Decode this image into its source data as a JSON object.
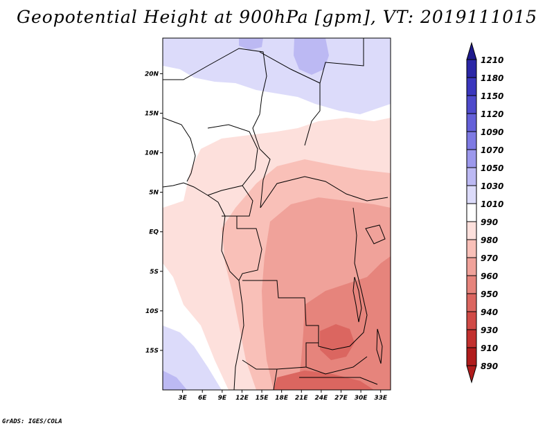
{
  "title": "Geopotential Height at 900hPa [gpm], VT: 2019111015",
  "credit": "GrADS: IGES/COLA",
  "map": {
    "region": "Central Africa",
    "lon_range": [
      0,
      34.5
    ],
    "lat_range": [
      -20,
      24.5
    ],
    "lon_labels": [
      "3E",
      "6E",
      "9E",
      "12E",
      "15E",
      "18E",
      "21E",
      "24E",
      "27E",
      "30E",
      "33E"
    ],
    "lon_values": [
      3,
      6,
      9,
      12,
      15,
      18,
      21,
      24,
      27,
      30,
      33
    ],
    "lat_labels": [
      "20N",
      "15N",
      "10N",
      "5N",
      "EQ",
      "5S",
      "10S",
      "15S"
    ],
    "lat_values": [
      20,
      15,
      10,
      5,
      0,
      -5,
      -10,
      -15
    ]
  },
  "colorbar": {
    "levels": [
      "1210",
      "1180",
      "1150",
      "1120",
      "1090",
      "1070",
      "1050",
      "1030",
      "1010",
      "990",
      "980",
      "970",
      "960",
      "950",
      "940",
      "930",
      "910",
      "890"
    ],
    "colors": [
      "#1e1a8c",
      "#2a26a6",
      "#3a36bd",
      "#4e4acb",
      "#6460d8",
      "#7e7ae3",
      "#9c98ec",
      "#bcb9f3",
      "#dcdbfa",
      "#ffffff",
      "#fde0dc",
      "#f9c0b8",
      "#f0a29a",
      "#e6847c",
      "#db6660",
      "#d04a46",
      "#c2302e",
      "#b01c1c"
    ]
  }
}
